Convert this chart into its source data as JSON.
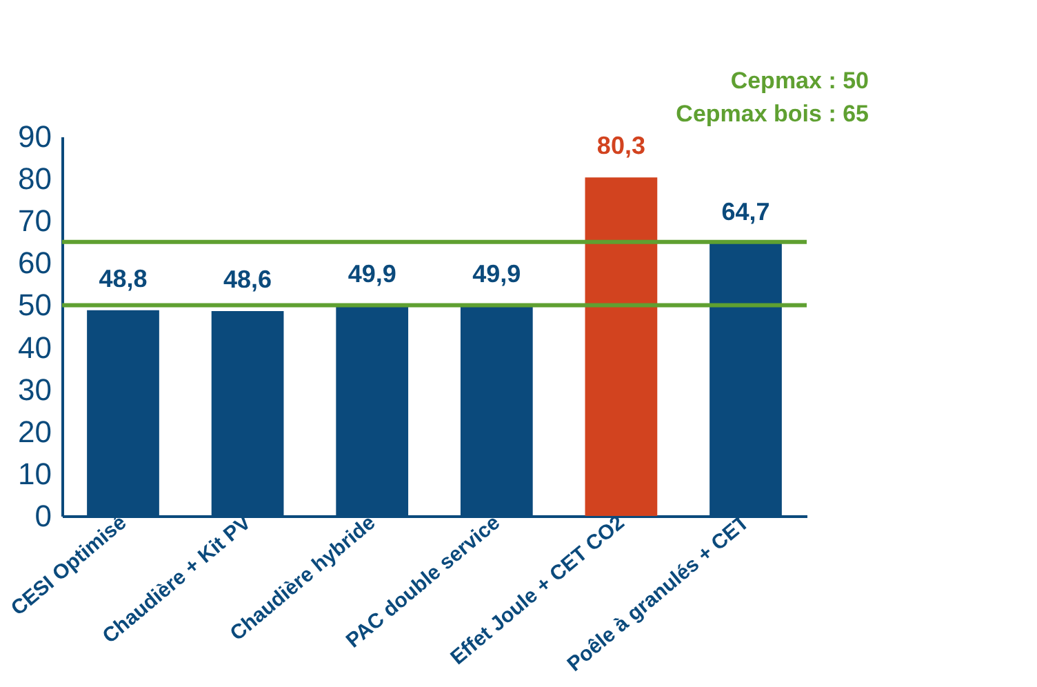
{
  "chart_data": {
    "type": "bar",
    "categories": [
      "CESI Optimisé",
      "Chaudière + Kit PV",
      "Chaudière hybride",
      "PAC double service",
      "Effet Joule + CET CO2",
      "Poêle à granulés + CET"
    ],
    "values": [
      48.8,
      48.6,
      49.9,
      49.9,
      80.3,
      64.7
    ],
    "value_labels": [
      "48,8",
      "48,6",
      "49,9",
      "49,9",
      "80,3",
      "64,7"
    ],
    "colors": [
      "#0b4a7c",
      "#0b4a7c",
      "#0b4a7c",
      "#0b4a7c",
      "#d2431f",
      "#0b4a7c"
    ],
    "ylim": [
      0,
      90
    ],
    "yticks": [
      0,
      10,
      20,
      30,
      40,
      50,
      60,
      70,
      80,
      90
    ],
    "grid": false,
    "legend": false,
    "ref_lines": [
      {
        "axis": "y",
        "value": 50,
        "label": "Cepmax : 50",
        "color": "#5fa031"
      },
      {
        "axis": "y",
        "value": 65,
        "label": "Cepmax bois : 65",
        "color": "#5fa031"
      }
    ]
  }
}
